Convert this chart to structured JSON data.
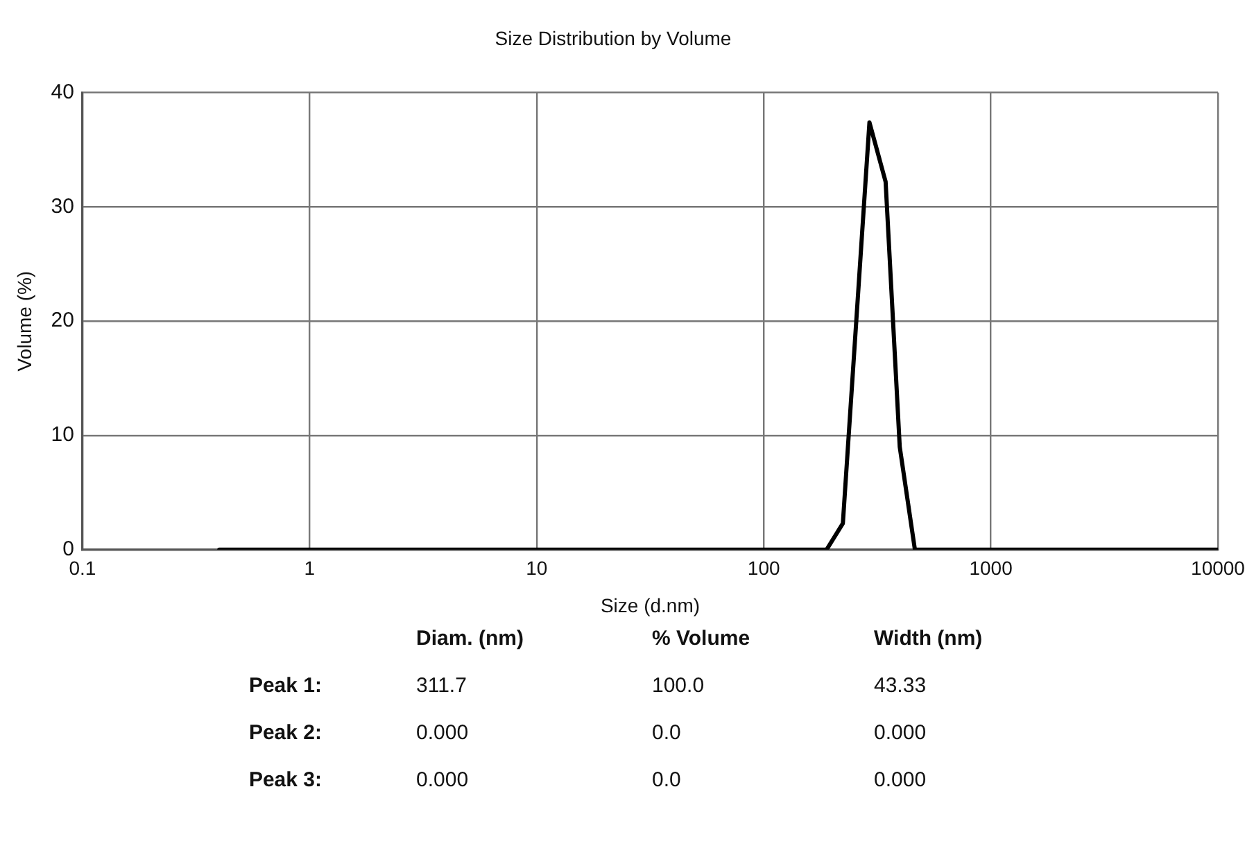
{
  "chart_data": {
    "type": "line",
    "title": "Size Distribution by Volume",
    "xlabel": "Size (d.nm)",
    "ylabel": "Volume (%)",
    "log": "x",
    "grid": true,
    "legend": false,
    "xlim": [
      0.1,
      10000
    ],
    "xticks": [
      0.1,
      1,
      10,
      100,
      1000,
      10000
    ],
    "ylim": [
      0,
      40
    ],
    "yticks": [
      0,
      10,
      20,
      30,
      40
    ],
    "series": [
      {
        "color": "#000000",
        "x": [
          0.4,
          189,
          223,
          292,
          344,
          397,
          463,
          10000
        ],
        "values": [
          0,
          0,
          2.3,
          37.4,
          32.2,
          9,
          0,
          0
        ]
      }
    ],
    "annotations": [
      "Diam. (nm)",
      "% Volume",
      "Width (nm)",
      "Peak 1:",
      "311.7",
      "100.0",
      "43.33",
      "Peak 2:",
      "0.000",
      "0.0",
      "0.000",
      "Peak 3:",
      "0.000",
      "0.0",
      "0.000"
    ]
  }
}
